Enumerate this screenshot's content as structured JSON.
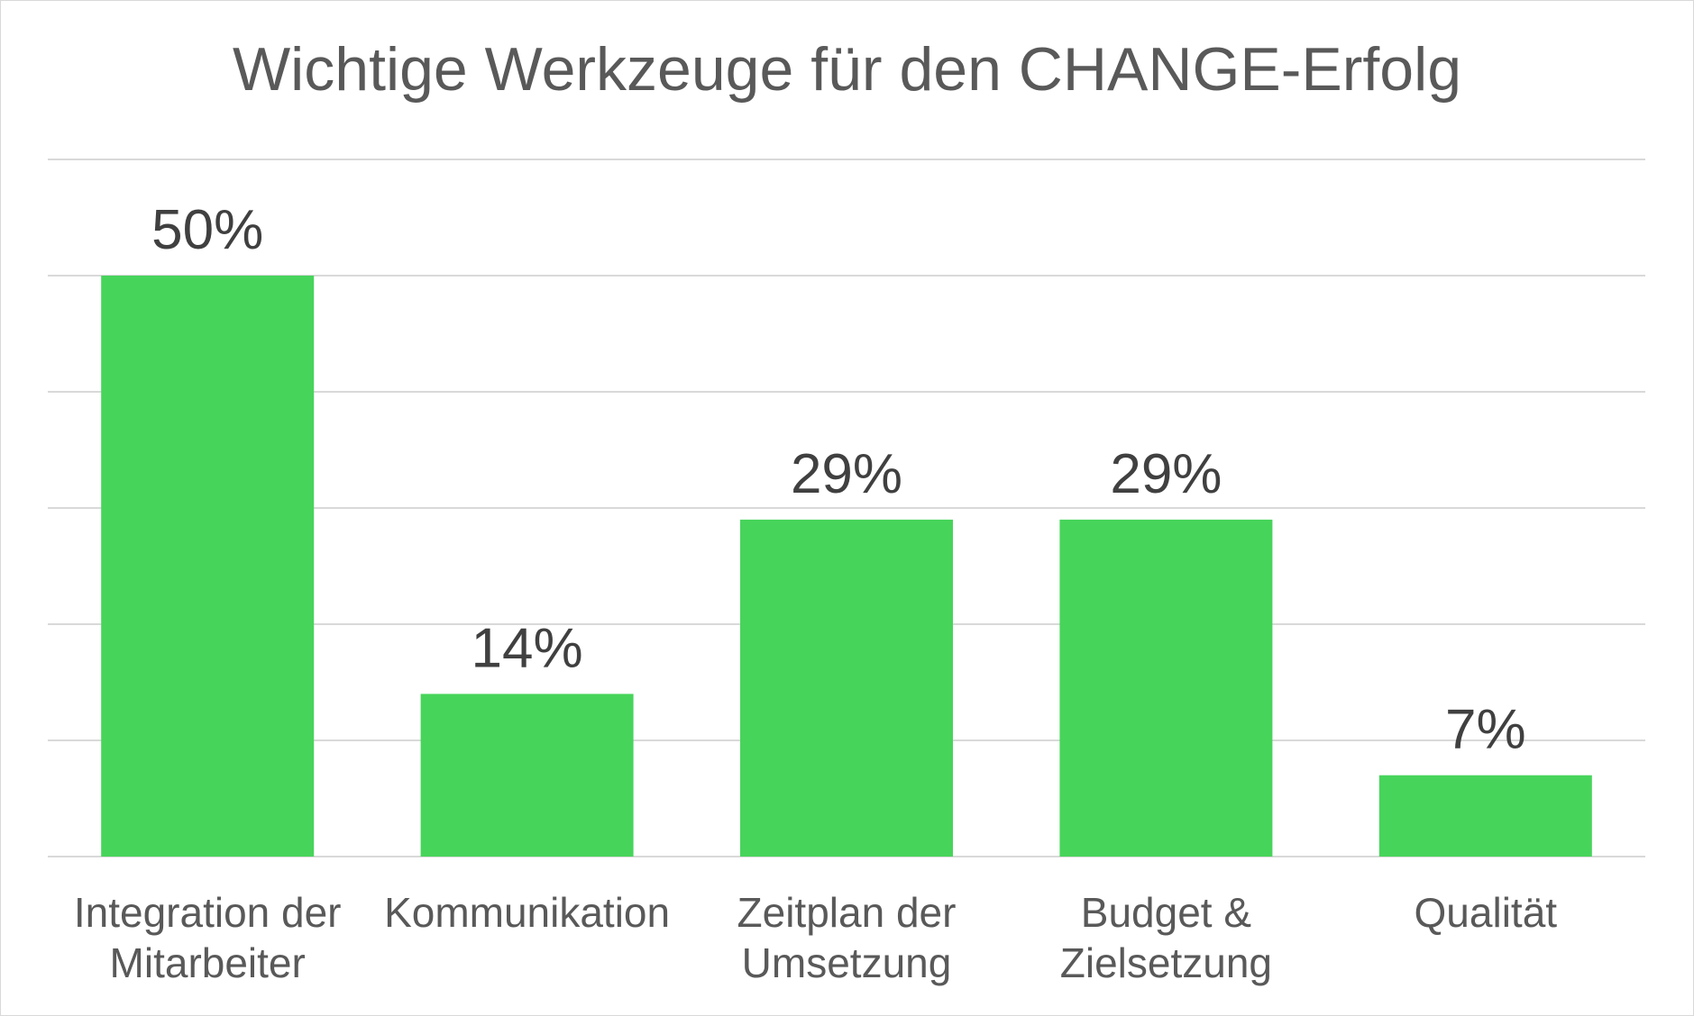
{
  "chart_data": {
    "type": "bar",
    "title": "Wichtige Werkzeuge für den CHANGE-Erfolg",
    "categories": [
      [
        "Integration der",
        "Mitarbeiter"
      ],
      [
        "Kommunikation"
      ],
      [
        "Zeitplan der",
        "Umsetzung"
      ],
      [
        "Budget &",
        "Zielsetzung"
      ],
      [
        "Qualität"
      ]
    ],
    "values": [
      50,
      14,
      29,
      29,
      7
    ],
    "data_labels": [
      "50%",
      "14%",
      "29%",
      "29%",
      "7%"
    ],
    "unit": "%",
    "ylim": [
      0,
      60
    ],
    "grid": true,
    "bar_color": "#47d45b"
  }
}
